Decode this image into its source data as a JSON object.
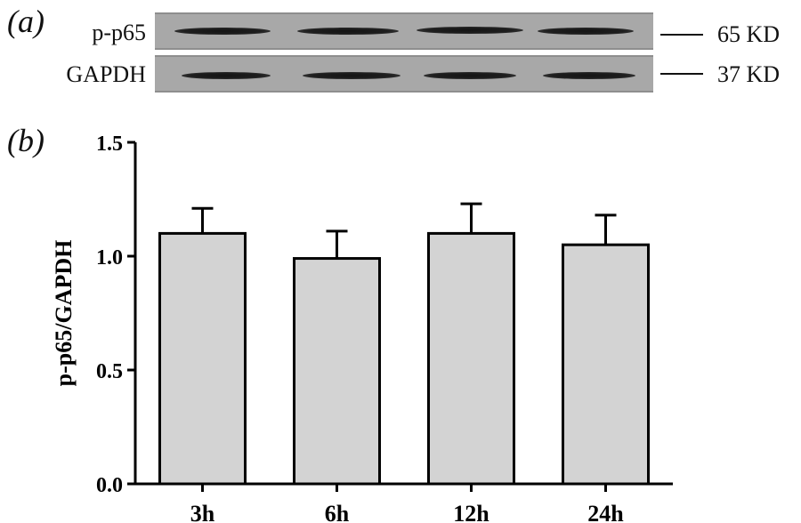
{
  "panels": {
    "a": "(a)",
    "b": "(b)"
  },
  "blot": {
    "rows": [
      {
        "label": "p-p65",
        "marker": "65 KD"
      },
      {
        "label": "GAPDH",
        "marker": "37 KD"
      }
    ]
  },
  "chart_data": {
    "type": "bar",
    "categories": [
      "3h",
      "6h",
      "12h",
      "24h"
    ],
    "values": [
      1.1,
      0.99,
      1.1,
      1.05
    ],
    "errors": [
      0.11,
      0.12,
      0.13,
      0.13
    ],
    "ylabel": "p-p65/GAPDH",
    "xlabel": "",
    "ylim": [
      0,
      1.5
    ],
    "yticks": [
      "0.0",
      "0.5",
      "1.0",
      "1.5"
    ],
    "grid": false,
    "bar_color": "#d3d3d3",
    "edge_color": "#000000"
  }
}
